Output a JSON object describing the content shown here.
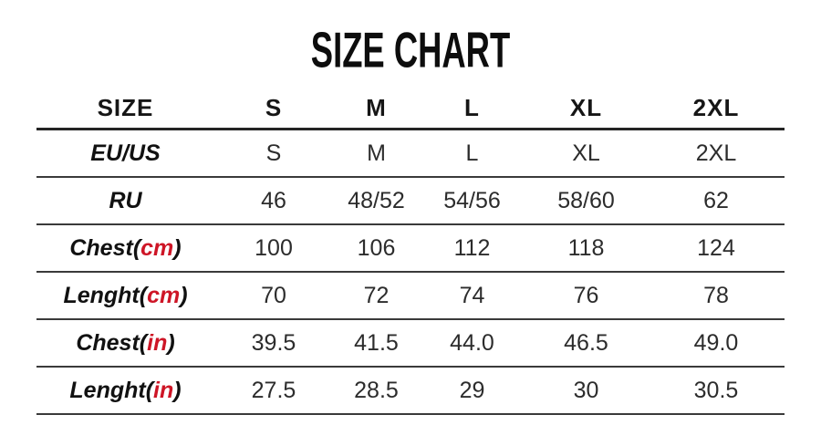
{
  "title": "SIZE CHART",
  "accent_color": "#ce1526",
  "table": {
    "columns": [
      "SIZE",
      "S",
      "M",
      "L",
      "XL",
      "2XL"
    ],
    "rows": [
      {
        "label": {
          "prefix": "EU/US",
          "unit": "",
          "suffix": ""
        },
        "values": [
          "S",
          "M",
          "L",
          "XL",
          "2XL"
        ]
      },
      {
        "label": {
          "prefix": "RU",
          "unit": "",
          "suffix": ""
        },
        "values": [
          "46",
          "48/52",
          "54/56",
          "58/60",
          "62"
        ]
      },
      {
        "label": {
          "prefix": "Chest(",
          "unit": "cm",
          "suffix": ")"
        },
        "values": [
          "100",
          "106",
          "112",
          "118",
          "124"
        ]
      },
      {
        "label": {
          "prefix": "Lenght(",
          "unit": "cm",
          "suffix": ")"
        },
        "values": [
          "70",
          "72",
          "74",
          "76",
          "78"
        ]
      },
      {
        "label": {
          "prefix": "Chest(",
          "unit": "in",
          "suffix": ")"
        },
        "values": [
          "39.5",
          "41.5",
          "44.0",
          "46.5",
          "49.0"
        ]
      },
      {
        "label": {
          "prefix": "Lenght(",
          "unit": "in",
          "suffix": ")"
        },
        "values": [
          "27.5",
          "28.5",
          "29",
          "30",
          "30.5"
        ]
      }
    ]
  }
}
